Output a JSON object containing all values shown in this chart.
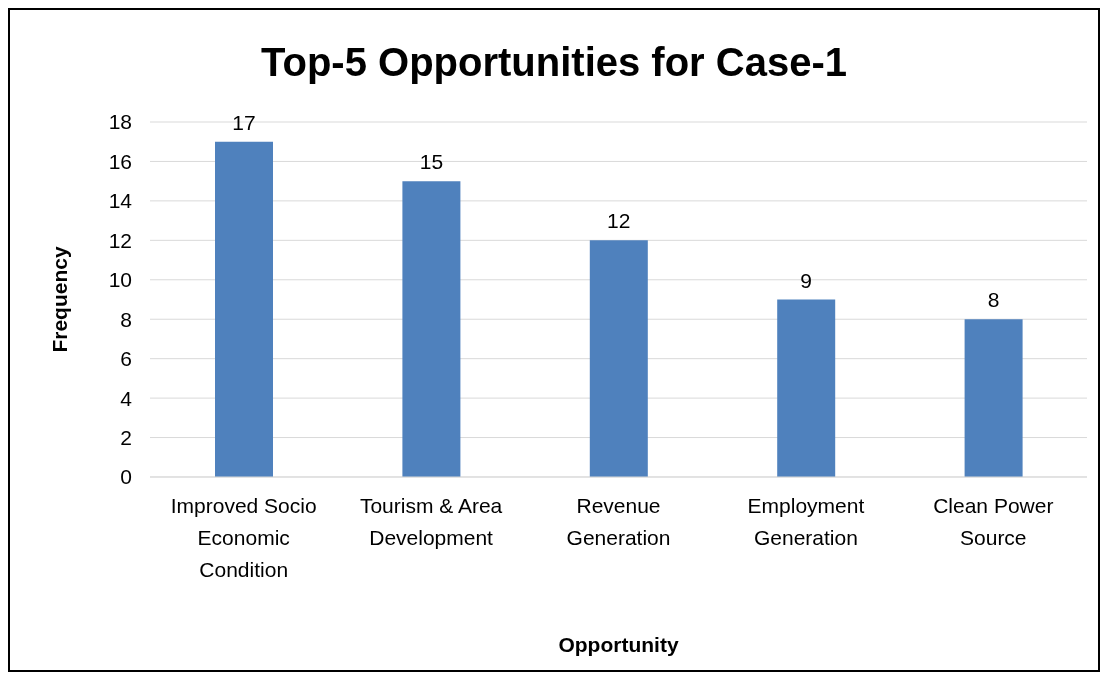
{
  "chart_data": {
    "type": "bar",
    "title": "Top-5 Opportunities for Case-1",
    "xlabel": "Opportunity",
    "ylabel": "Frequency",
    "categories": [
      "Improved Socio Economic Condition",
      "Tourism & Area Development",
      "Revenue Generation",
      "Employment Generation",
      "Clean Power Source"
    ],
    "values": [
      17,
      15,
      12,
      9,
      8
    ],
    "color": "#4f81bd",
    "ylim": [
      0,
      18
    ],
    "yticks": [
      0,
      2,
      4,
      6,
      8,
      10,
      12,
      14,
      16,
      18
    ],
    "grid": "y",
    "data_labels": true,
    "legend": false
  }
}
